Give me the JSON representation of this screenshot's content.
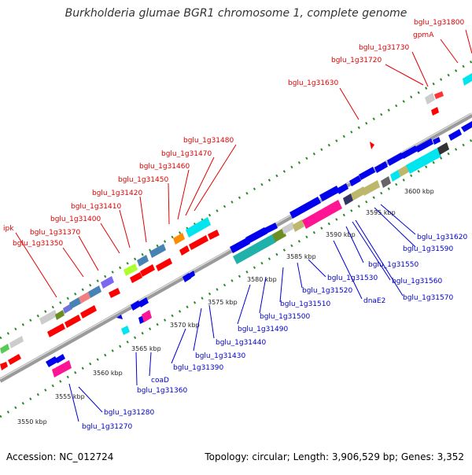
{
  "header": {
    "title": "Burkholderia glumae BGR1 chromosome 1, complete genome"
  },
  "footer": {
    "accession": "Accession: NC_012724",
    "summary": "Topology: circular; Length: 3,906,529 bp; Genes: 3,352"
  },
  "colors": {
    "forward_label": "#e00000",
    "reverse_label": "#0000cc",
    "axis": "#999999",
    "tick": "#228822"
  },
  "genome_map": {
    "scale_labels": [
      "3550 kbp",
      "3555 kbp",
      "3560 kbp",
      "3565 kbp",
      "3570 kbp",
      "3575 kbp",
      "3580 kbp",
      "3585 kbp",
      "3590 kbp",
      "3595 kbp",
      "3600 kbp"
    ],
    "forward_gene_labels": [
      "ipk",
      "bglu_1g31350",
      "bglu_1g31370",
      "bglu_1g31400",
      "bglu_1g31410",
      "bglu_1g31420",
      "bglu_1g31450",
      "bglu_1g31460",
      "bglu_1g31470",
      "bglu_1g31480",
      "bglu_1g31630",
      "bglu_1g31720",
      "bglu_1g31730",
      "gpmA",
      "bglu_1g31800"
    ],
    "reverse_gene_labels": [
      "bglu_1g31270",
      "bglu_1g31280",
      "bglu_1g31360",
      "coaD",
      "bglu_1g31390",
      "bglu_1g31430",
      "bglu_1g31440",
      "bglu_1g31490",
      "bglu_1g31500",
      "bglu_1g31510",
      "bglu_1g31520",
      "dnaE2",
      "bglu_1g31530",
      "bglu_1g31570",
      "bglu_1g31560",
      "bglu_1g31550",
      "bglu_1g31590",
      "bglu_1g31620"
    ]
  }
}
